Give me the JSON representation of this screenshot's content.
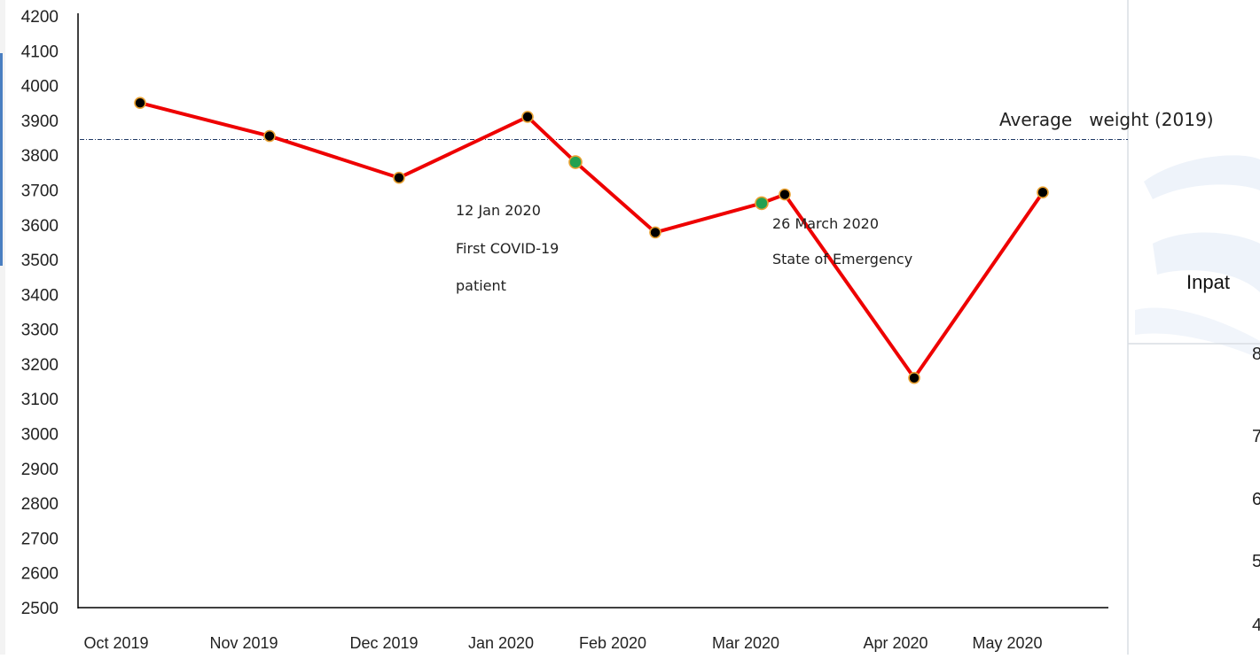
{
  "chart_data": {
    "type": "line",
    "title": "",
    "xlabel": "",
    "ylabel": "",
    "ylim": [
      2500,
      4200
    ],
    "yticks": [
      2500,
      2600,
      2700,
      2800,
      2900,
      3000,
      3100,
      3200,
      3300,
      3400,
      3500,
      3600,
      3700,
      3800,
      3900,
      4000,
      4100,
      4200
    ],
    "categories": [
      "Oct 2019",
      "Nov 2019",
      "Dec 2019",
      "Jan 2020",
      "Feb 2020",
      "Mar 2020",
      "Apr 2020",
      "May 2020"
    ],
    "series": [
      {
        "color": "#ee0000",
        "points": [
          {
            "x": "Oct 2019",
            "y": 3950,
            "marker": "black"
          },
          {
            "x": "Nov 2019",
            "y": 3855,
            "marker": "black"
          },
          {
            "x": "Dec 2019",
            "y": 3735,
            "marker": "black"
          },
          {
            "x": "Jan 2020",
            "y": 3910,
            "marker": "black"
          },
          {
            "x": "12 Jan 2020",
            "y": 3780,
            "marker": "green"
          },
          {
            "x": "Feb 2020",
            "y": 3578,
            "marker": "black"
          },
          {
            "x": "26 March 2020",
            "y": 3662,
            "marker": "green"
          },
          {
            "x": "Mar 2020",
            "y": 3687,
            "marker": "black"
          },
          {
            "x": "Apr 2020",
            "y": 3160,
            "marker": "black"
          },
          {
            "x": "May 2020",
            "y": 3693,
            "marker": "black"
          }
        ]
      }
    ],
    "reference_line": {
      "label": "Average   weight (2019)",
      "y": 3845,
      "color": "#1f3864"
    },
    "annotations": [
      {
        "lines": [
          "12 Jan 2020",
          "First COVID-19",
          "patient"
        ]
      },
      {
        "lines": [
          "26 March 2020",
          "State of Emergency"
        ]
      }
    ],
    "grid": false,
    "legend": "none"
  },
  "side_panel": {
    "title_fragment": "Inpat",
    "tick_fragments": [
      "8",
      "7",
      "6",
      "5",
      "4"
    ]
  },
  "colors": {
    "line": "#ee0000",
    "marker_main": "#000000",
    "marker_event": "#22a050",
    "marker_edge": "#e8a030",
    "panel_bg": "#eef3fa"
  }
}
